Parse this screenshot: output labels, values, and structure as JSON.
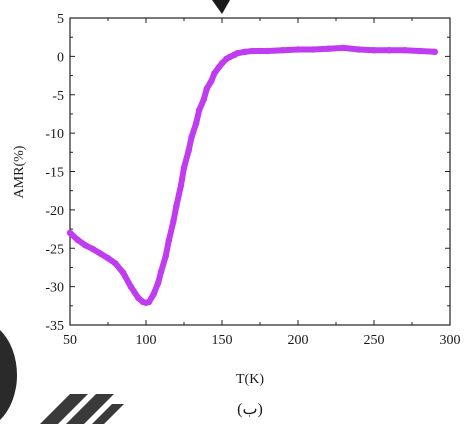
{
  "chart_data": {
    "type": "line",
    "xlabel": "T(K)",
    "ylabel": "AMR(%)",
    "xlim": [
      50,
      300
    ],
    "ylim": [
      -35,
      5
    ],
    "x_ticks": [
      "50",
      "100",
      "150",
      "200",
      "250",
      "300"
    ],
    "y_ticks": [
      "5",
      "0",
      "-5",
      "-10",
      "-15",
      "-20",
      "-25",
      "-30",
      "-35"
    ],
    "grid": false,
    "series": [
      {
        "color": "#c03cf0",
        "x": [
          50,
          55,
          60,
          65,
          70,
          75,
          80,
          85,
          90,
          95,
          98,
          100,
          102,
          105,
          108,
          110,
          113,
          115,
          118,
          120,
          123,
          125,
          128,
          130,
          133,
          135,
          138,
          140,
          143,
          145,
          148,
          150,
          153,
          155,
          158,
          160,
          165,
          170,
          175,
          180,
          190,
          200,
          210,
          220,
          230,
          240,
          250,
          260,
          270,
          280,
          290
        ],
        "y": [
          -23,
          -23.9,
          -24.6,
          -25.1,
          -25.7,
          -26.3,
          -27.0,
          -28.2,
          -30.0,
          -31.5,
          -32.0,
          -32.1,
          -32.0,
          -31.0,
          -29.5,
          -28.0,
          -26.0,
          -24.0,
          -21.5,
          -19.5,
          -16.8,
          -14.5,
          -12.3,
          -10.5,
          -8.7,
          -7.0,
          -5.6,
          -4.2,
          -3.2,
          -2.2,
          -1.4,
          -0.9,
          -0.3,
          -0.1,
          0.2,
          0.4,
          0.6,
          0.7,
          0.7,
          0.7,
          0.8,
          0.9,
          0.9,
          1.0,
          1.1,
          0.9,
          0.8,
          0.8,
          0.8,
          0.7,
          0.6
        ]
      }
    ]
  },
  "caption": "(ب)"
}
